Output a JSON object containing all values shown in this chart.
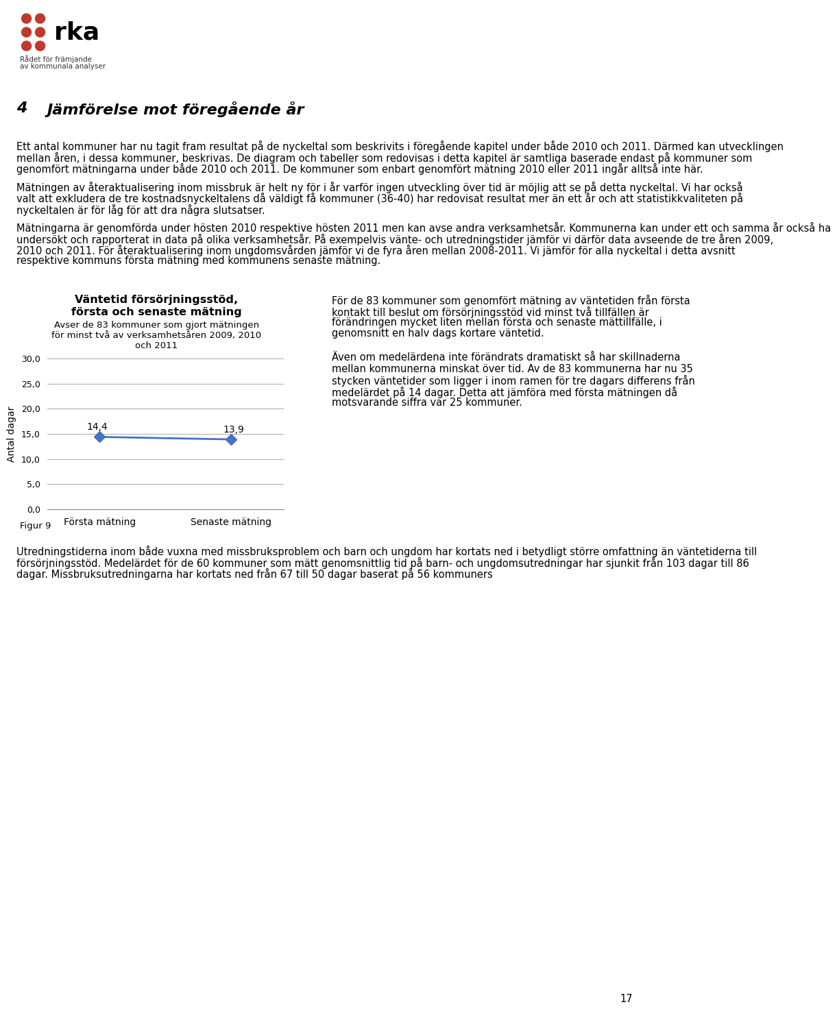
{
  "page_title_num": "4",
  "page_title_text": "Jämförelse mot föregående år",
  "logo_text_line1": "Rådet för främjande",
  "logo_text_line2": "av kommunala analyser",
  "para1": "Ett antal kommuner har nu tagit fram resultat på de nyckeltal som beskrivits i föregående kapitel under både 2010 och 2011. Därmed kan utvecklingen mellan åren, i dessa kommuner, beskrivas. De diagram och tabeller som redovisas i detta kapitel är samtliga baserade endast på kommuner som genomfört mätningarna under både 2010 och 2011. De kommuner som enbart genomfört mätning 2010 eller 2011 ingår alltså inte här.",
  "para2": "Mätningen av återaktualisering inom missbruk är helt ny för i år varför ingen utveckling över tid är möjlig att se på detta nyckeltal. Vi har också valt att exkludera de tre kostnadsnyckeltalens då väldigt få kommuner (36-40) har redovisat resultat mer än ett år och att statistikkvaliteten på nyckeltalen är för låg för att dra några slutsatser.",
  "para3": "Mätningarna är genomförda under hösten 2010 respektive hösten 2011 men kan avse andra verksamhetsår. Kommunerna kan under ett och samma år också ha undersökt och rapporterat in data på olika verksamhetsår. På exempelvis vänte- och utredningstider jämför vi därför data avseende de tre åren 2009, 2010 och 2011. För återaktualisering inom ungdomsvården jämför vi de fyra åren mellan 2008-2011. Vi jämför för alla nyckeltal i detta avsnitt respektive kommuns första mätning med kommunens senaste mätning.",
  "chart_title_line1": "Väntetid försörjningsstöd,",
  "chart_title_line2": "första och senaste mätning",
  "chart_subtitle_line1": "Avser de 83 kommuner som gjort mätningen",
  "chart_subtitle_line2": "för minst två av verksamhetsåren 2009, 2010",
  "chart_subtitle_line3": "och 2011",
  "chart_ylabel": "Antal dagar",
  "chart_x_labels": [
    "Första mätning",
    "Senaste mätning"
  ],
  "chart_values": [
    14.4,
    13.9
  ],
  "chart_ylim": [
    0,
    30
  ],
  "chart_yticks": [
    0.0,
    5.0,
    10.0,
    15.0,
    20.0,
    25.0,
    30.0
  ],
  "line_color": "#4472C4",
  "marker_color": "#4472C4",
  "right_para1": "För de 83 kommuner som genomfört mätning av väntetiden från första kontakt till beslut om försörjningsstöd vid minst två tillfällen är förändringen mycket liten mellan första och senaste mättillfälle, i genomsnitt en halv dags kortare väntetid.",
  "right_para2": "Även om medelärdena inte förändrats dramatiskt så har skillnaderna mellan kommunerna minskat över tid. Av de 83 kommunerna har nu 35 stycken väntetider som ligger i inom ramen för tre dagars differens från medelärdet på 14 dagar. Detta att jämföra med första mätningen då motsvarande siffra var 25 kommuner.",
  "figur_label": "Figur 9",
  "bottom_paragraph": "Utredningstiderna inom både vuxna med missbruksproblem och barn och ungdom har kortats ned i betydligt större omfattning än väntetiderna till försörjningsstöd. Medelärdet för de 60 kommuner som mätt genomsnittlig tid på barn- och ungdomsutredningar har sjunkit från 103 dagar till 86 dagar. Missbruksutredningarna har kortats ned från 67 till 50 dagar baserat på 56 kommuners",
  "page_number": "17",
  "background_color": "#ffffff",
  "text_color": "#000000",
  "body_fontsize": 10.5,
  "title_fontsize": 16
}
